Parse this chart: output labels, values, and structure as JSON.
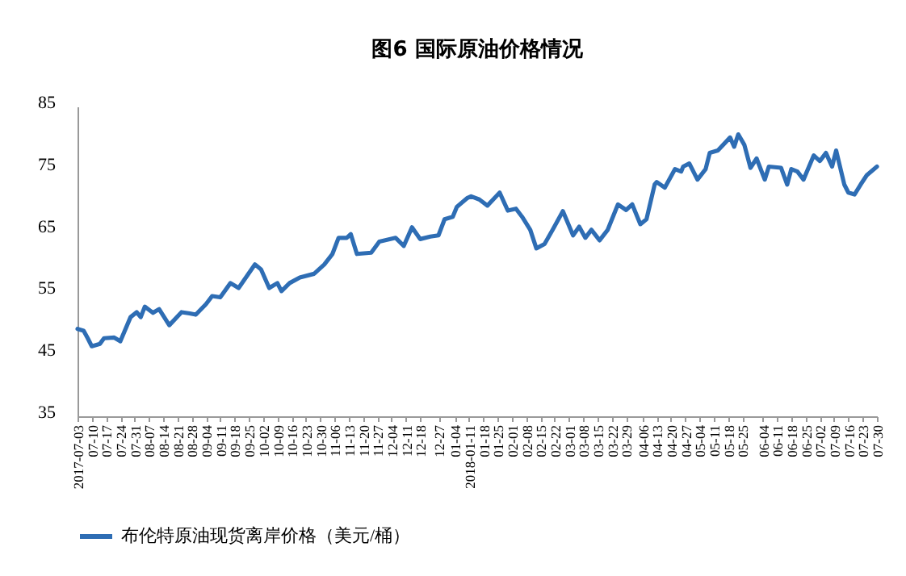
{
  "chart_data": {
    "type": "line",
    "title": "图6 国际原油价格情况",
    "x": [
      "2017-07-03",
      "2017-07-06",
      "2017-07-08",
      "2017-07-10",
      "2017-07-14",
      "2017-07-16",
      "2017-07-21",
      "2017-07-24",
      "2017-07-29",
      "2017-08-01",
      "2017-08-03",
      "2017-08-05",
      "2017-08-09",
      "2017-08-12",
      "2017-08-17",
      "2017-08-23",
      "2017-08-27",
      "2017-08-30",
      "2017-09-04",
      "2017-09-07",
      "2017-09-11",
      "2017-09-16",
      "2017-09-20",
      "2017-09-28",
      "2017-10-01",
      "2017-10-05",
      "2017-10-09",
      "2017-10-11",
      "2017-10-15",
      "2017-10-20",
      "2017-10-27",
      "2017-11-01",
      "2017-11-05",
      "2017-11-08",
      "2017-11-12",
      "2017-11-14",
      "2017-11-17",
      "2017-11-24",
      "2017-11-28",
      "2017-12-06",
      "2017-12-10",
      "2017-12-14",
      "2017-12-18",
      "2017-12-23",
      "2017-12-27",
      "2017-12-30",
      "2018-01-03",
      "2018-01-05",
      "2018-01-10",
      "2018-01-12",
      "2018-01-16",
      "2018-01-20",
      "2018-01-26",
      "2018-01-30",
      "2018-02-03",
      "2018-02-06",
      "2018-02-10",
      "2018-02-13",
      "2018-02-17",
      "2018-02-21",
      "2018-02-26",
      "2018-03-03",
      "2018-03-06",
      "2018-03-09",
      "2018-03-12",
      "2018-03-16",
      "2018-03-20",
      "2018-03-25",
      "2018-03-29",
      "2018-04-01",
      "2018-04-05",
      "2018-04-08",
      "2018-04-12",
      "2018-04-13",
      "2018-04-17",
      "2018-04-22",
      "2018-04-25",
      "2018-04-26",
      "2018-04-29",
      "2018-05-03",
      "2018-05-07",
      "2018-05-09",
      "2018-05-13",
      "2018-05-19",
      "2018-05-21",
      "2018-05-23",
      "2018-05-26",
      "2018-05-29",
      "2018-06-01",
      "2018-06-05",
      "2018-06-07",
      "2018-06-13",
      "2018-06-16",
      "2018-06-18",
      "2018-06-21",
      "2018-06-24",
      "2018-06-29",
      "2018-07-02",
      "2018-07-05",
      "2018-07-08",
      "2018-07-10",
      "2018-07-14",
      "2018-07-16",
      "2018-07-19",
      "2018-07-22",
      "2018-07-25",
      "2018-07-30"
    ],
    "series": [
      {
        "name": "布伦特原油现货离岸价格（美元/桶）",
        "color": "#2e6db4",
        "values": [
          49.1,
          48.8,
          47.6,
          46.3,
          46.7,
          47.6,
          47.7,
          47.1,
          51.0,
          51.8,
          51.0,
          52.7,
          51.7,
          52.3,
          49.7,
          51.8,
          51.6,
          51.4,
          53.1,
          54.4,
          54.2,
          56.5,
          55.7,
          59.5,
          58.7,
          55.7,
          56.5,
          55.2,
          56.5,
          57.4,
          58.0,
          59.5,
          61.2,
          63.8,
          63.8,
          64.4,
          61.2,
          61.4,
          63.2,
          63.8,
          62.5,
          65.5,
          63.6,
          64.0,
          64.2,
          66.8,
          67.2,
          68.8,
          70.2,
          70.5,
          70.0,
          69.0,
          71.1,
          68.2,
          68.5,
          67.2,
          65.1,
          62.1,
          62.8,
          65.1,
          68.1,
          64.2,
          65.6,
          63.8,
          65.1,
          63.4,
          65.1,
          69.2,
          68.3,
          69.2,
          66.0,
          66.8,
          72.4,
          72.8,
          71.9,
          74.9,
          74.5,
          75.3,
          75.8,
          73.2,
          74.9,
          77.5,
          77.9,
          80.0,
          78.5,
          80.5,
          78.8,
          75.1,
          76.6,
          73.2,
          75.3,
          75.1,
          72.4,
          74.9,
          74.5,
          73.2,
          77.1,
          76.2,
          77.5,
          75.3,
          77.9,
          72.4,
          71.1,
          70.8,
          72.4,
          73.9,
          75.3
        ]
      }
    ],
    "xlim": [
      "2017-07-03",
      "2018-07-30"
    ],
    "xticks": [
      {
        "value": "2017-07-03",
        "label": "2017-07-03"
      },
      {
        "value": "2017-07-10",
        "label": "07-10"
      },
      {
        "value": "2017-07-17",
        "label": "07-17"
      },
      {
        "value": "2017-07-24",
        "label": "07-24"
      },
      {
        "value": "2017-07-31",
        "label": "07-31"
      },
      {
        "value": "2017-08-07",
        "label": "08-07"
      },
      {
        "value": "2017-08-14",
        "label": "08-14"
      },
      {
        "value": "2017-08-21",
        "label": "08-21"
      },
      {
        "value": "2017-08-28",
        "label": "08-28"
      },
      {
        "value": "2017-09-04",
        "label": "09-04"
      },
      {
        "value": "2017-09-11",
        "label": "09-11"
      },
      {
        "value": "2017-09-18",
        "label": "09-18"
      },
      {
        "value": "2017-09-25",
        "label": "09-25"
      },
      {
        "value": "2017-10-02",
        "label": "10-02"
      },
      {
        "value": "2017-10-09",
        "label": "10-09"
      },
      {
        "value": "2017-10-16",
        "label": "10-16"
      },
      {
        "value": "2017-10-23",
        "label": "10-23"
      },
      {
        "value": "2017-10-30",
        "label": "10-30"
      },
      {
        "value": "2017-11-06",
        "label": "11-06"
      },
      {
        "value": "2017-11-13",
        "label": "11-13"
      },
      {
        "value": "2017-11-20",
        "label": "11-20"
      },
      {
        "value": "2017-11-27",
        "label": "11-27"
      },
      {
        "value": "2017-12-04",
        "label": "12-04"
      },
      {
        "value": "2017-12-11",
        "label": "12-11"
      },
      {
        "value": "2017-12-18",
        "label": "12-18"
      },
      {
        "value": "2017-12-27",
        "label": "12-27"
      },
      {
        "value": "2018-01-04",
        "label": "01-04"
      },
      {
        "value": "2018-01-11",
        "label": "2018-01-11"
      },
      {
        "value": "2018-01-18",
        "label": "01-18"
      },
      {
        "value": "2018-01-25",
        "label": "01-25"
      },
      {
        "value": "2018-02-01",
        "label": "02-01"
      },
      {
        "value": "2018-02-08",
        "label": "02-08"
      },
      {
        "value": "2018-02-15",
        "label": "02-15"
      },
      {
        "value": "2018-02-22",
        "label": "02-22"
      },
      {
        "value": "2018-03-01",
        "label": "03-01"
      },
      {
        "value": "2018-03-08",
        "label": "03-08"
      },
      {
        "value": "2018-03-15",
        "label": "03-15"
      },
      {
        "value": "2018-03-22",
        "label": "03-22"
      },
      {
        "value": "2018-03-29",
        "label": "03-29"
      },
      {
        "value": "2018-04-06",
        "label": "04-06"
      },
      {
        "value": "2018-04-13",
        "label": "04-13"
      },
      {
        "value": "2018-04-20",
        "label": "04-20"
      },
      {
        "value": "2018-04-27",
        "label": "04-27"
      },
      {
        "value": "2018-05-04",
        "label": "05-04"
      },
      {
        "value": "2018-05-11",
        "label": "05-11"
      },
      {
        "value": "2018-05-18",
        "label": "05-18"
      },
      {
        "value": "2018-05-25",
        "label": "05-25"
      },
      {
        "value": "2018-06-04",
        "label": "06-04"
      },
      {
        "value": "2018-06-11",
        "label": "06-11"
      },
      {
        "value": "2018-06-18",
        "label": "06-18"
      },
      {
        "value": "2018-06-25",
        "label": "06-25"
      },
      {
        "value": "2018-07-02",
        "label": "07-02"
      },
      {
        "value": "2018-07-09",
        "label": "07-09"
      },
      {
        "value": "2018-07-16",
        "label": "07-16"
      },
      {
        "value": "2018-07-23",
        "label": "07-23"
      },
      {
        "value": "2018-07-30",
        "label": "07-30"
      }
    ],
    "ylim": [
      35,
      85
    ],
    "yticks": [
      35,
      45,
      55,
      65,
      75,
      85
    ],
    "legend": "bottom",
    "marker": "none",
    "line_style": "solid"
  }
}
